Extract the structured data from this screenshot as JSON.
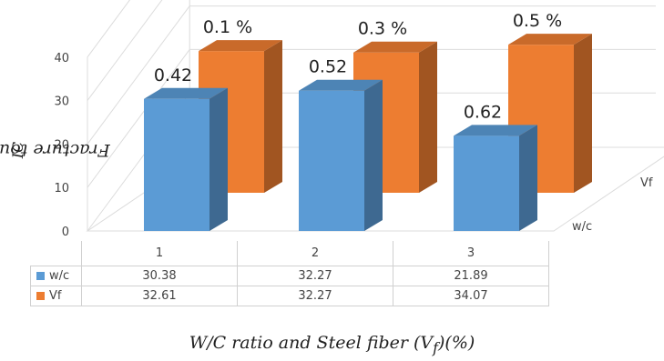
{
  "chart_data": {
    "type": "bar",
    "variant": "3d-clustered-column",
    "categories": [
      "1",
      "2",
      "3"
    ],
    "series": [
      {
        "name": "w/c",
        "values": [
          30.38,
          32.27,
          21.89
        ],
        "labels": [
          "0.42",
          "0.52",
          "0.62"
        ],
        "color": "#5b9bd5"
      },
      {
        "name": "Vf",
        "values": [
          32.61,
          32.27,
          34.07
        ],
        "labels": [
          "0.1 %",
          "0.3 %",
          "0.5 %"
        ],
        "color": "#ed7d31"
      }
    ],
    "ylabel": "Fracture toughness K",
    "ylabel_sub": "IC",
    "xlabel": "W/C ratio  and Steel fiber (V",
    "xlabel_sub": "f",
    "xlabel_tail": ")(%)",
    "ylim": [
      0,
      40
    ],
    "yticks": [
      "0",
      "10",
      "20",
      "30",
      "40"
    ],
    "grid": true,
    "data_table": true,
    "depth_axis_labels": [
      "w/c",
      "Vf"
    ]
  }
}
